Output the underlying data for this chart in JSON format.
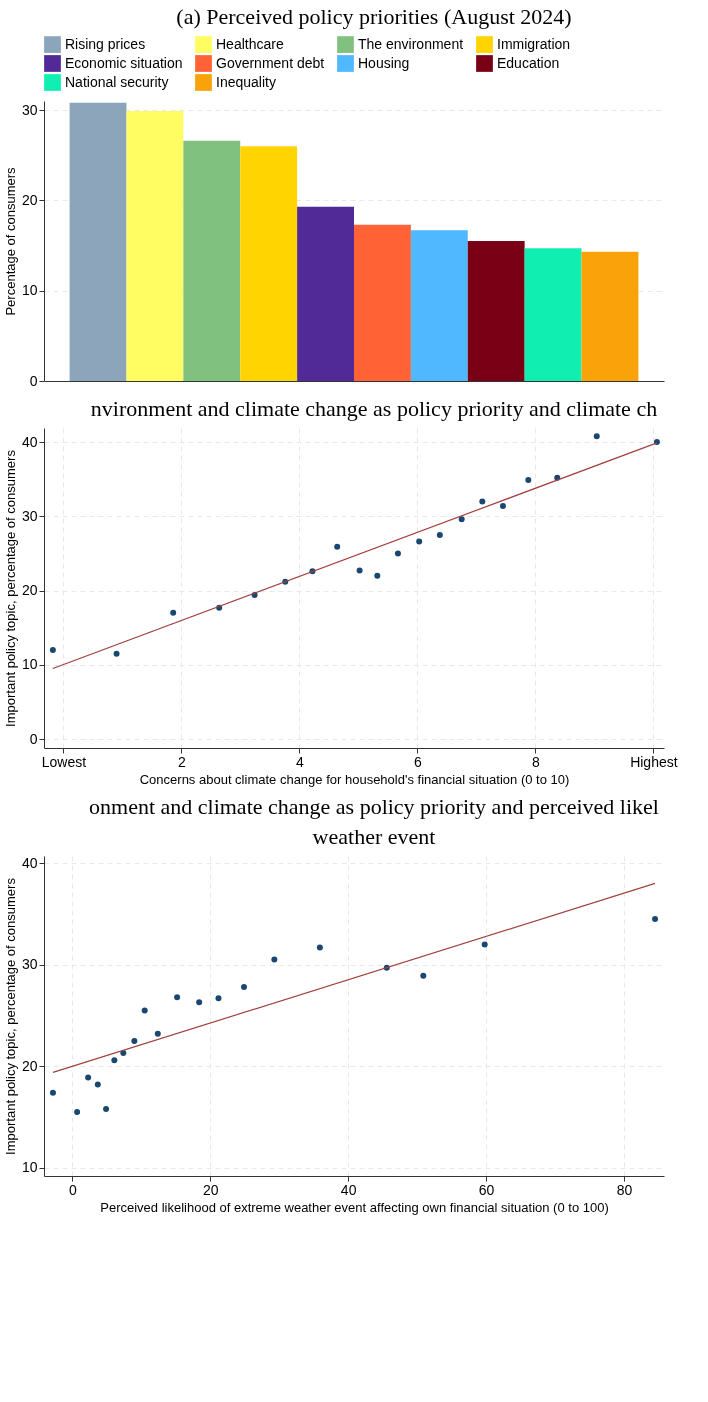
{
  "chart_data": [
    {
      "type": "bar",
      "title": "(a)  Perceived policy priorities (August 2024)",
      "ylabel": "Percentage of consumers",
      "categories": [
        null,
        null,
        null,
        null,
        null,
        null,
        null,
        null,
        null,
        null
      ],
      "stacked": true,
      "series": [
        {
          "name": "Rising prices",
          "color": "#8ca5ba",
          "values": [
            30.8,
            null,
            null,
            null,
            null,
            null,
            null,
            null,
            null,
            null
          ]
        },
        {
          "name": "Healthcare",
          "color": "#fffd62",
          "values": [
            null,
            29.9,
            null,
            null,
            null,
            null,
            null,
            null,
            null,
            null
          ]
        },
        {
          "name": "The environment",
          "color": "#80c180",
          "values": [
            null,
            null,
            26.6,
            null,
            null,
            null,
            null,
            null,
            null,
            null
          ]
        },
        {
          "name": "Immigration",
          "color": "#ffd400",
          "values": [
            null,
            null,
            null,
            26.0,
            null,
            null,
            null,
            null,
            null,
            null
          ]
        },
        {
          "name": "Economic situation",
          "color": "#512a97",
          "values": [
            null,
            null,
            null,
            null,
            19.3,
            null,
            null,
            null,
            null,
            null
          ]
        },
        {
          "name": "Government debt",
          "color": "#ff6234",
          "values": [
            null,
            null,
            null,
            null,
            null,
            17.3,
            null,
            null,
            null,
            null
          ]
        },
        {
          "name": "Housing",
          "color": "#4fb8ff",
          "values": [
            null,
            null,
            null,
            null,
            null,
            null,
            16.7,
            null,
            null,
            null
          ]
        },
        {
          "name": "Education",
          "color": "#7a0016",
          "values": [
            null,
            null,
            null,
            null,
            null,
            null,
            null,
            15.5,
            null,
            null
          ]
        },
        {
          "name": "National security",
          "color": "#10efb1",
          "values": [
            null,
            null,
            null,
            null,
            null,
            null,
            null,
            null,
            14.7,
            null
          ]
        },
        {
          "name": "Inequality",
          "color": "#f9a20a",
          "values": [
            null,
            null,
            null,
            null,
            null,
            null,
            null,
            null,
            null,
            14.3
          ]
        }
      ],
      "ylim": [
        0,
        31
      ],
      "yticks": [
        0,
        10,
        20,
        30
      ],
      "grid": "y",
      "legend": "top",
      "tick_labels": "y"
    },
    {
      "type": "scatter",
      "title": "nvironment and climate change as policy priority and climate ch",
      "xlabel": "Concerns about climate change for household's financial situation (0 to 10)",
      "ylabel": "Important policy topic, percentage of consumers",
      "series": [
        {
          "type": "scatter",
          "marker": "circle",
          "color": "#1a476f",
          "x": [
            -0.18,
            0.9,
            1.86,
            2.64,
            3.24,
            3.76,
            4.22,
            4.64,
            5.02,
            5.32,
            5.67,
            6.03,
            6.38,
            6.75,
            7.1,
            7.45,
            7.88,
            8.37,
            9.04,
            10.06
          ],
          "values": [
            12.0,
            11.5,
            17.0,
            17.7,
            19.4,
            21.2,
            22.6,
            25.9,
            22.7,
            22.0,
            25.0,
            26.6,
            27.5,
            29.6,
            32.0,
            31.4,
            34.9,
            35.2,
            40.8,
            40.0
          ]
        },
        {
          "type": "line",
          "color": "#a0413f",
          "x": [
            -0.18,
            10.06
          ],
          "values": [
            9.5,
            39.9
          ]
        }
      ],
      "xlim": [
        -0.33,
        10.18
      ],
      "xticks": [
        {
          "value": 0,
          "label": "Lowest"
        },
        2,
        4,
        6,
        8,
        {
          "value": 10,
          "label": "Highest"
        }
      ],
      "ylim": [
        -1.2,
        41.9
      ],
      "yticks": [
        0,
        10,
        20,
        30,
        40
      ],
      "grid": true
    },
    {
      "type": "scatter",
      "title": "onment and climate change as policy priority and perceived likel\nweather event",
      "xlabel": "Perceived likelihood of extreme weather event affecting own financial situation (0 to 100)",
      "ylabel": "Important policy topic, percentage of consumers",
      "series": [
        {
          "type": "scatter",
          "marker": "circle",
          "color": "#1a476f",
          "x": [
            -2.8,
            0.7,
            2.3,
            3.7,
            4.9,
            6.1,
            7.4,
            9.0,
            10.5,
            12.4,
            15.2,
            18.4,
            21.2,
            24.9,
            29.3,
            35.9,
            45.6,
            50.9,
            59.8,
            84.5
          ],
          "values": [
            17.4,
            15.5,
            18.9,
            18.2,
            15.8,
            20.6,
            21.3,
            22.5,
            25.5,
            23.2,
            26.8,
            26.3,
            26.7,
            27.8,
            30.5,
            31.7,
            29.7,
            28.9,
            32.0,
            34.5
          ]
        },
        {
          "type": "line",
          "color": "#a0413f",
          "x": [
            -2.8,
            84.5
          ],
          "values": [
            19.4,
            38.0
          ]
        }
      ],
      "xlim": [
        -4.1,
        85.8
      ],
      "xticks": [
        0,
        20,
        40,
        60,
        80
      ],
      "ylim": [
        9.2,
        40.7
      ],
      "yticks": [
        10,
        20,
        30,
        40
      ],
      "grid": true
    }
  ]
}
